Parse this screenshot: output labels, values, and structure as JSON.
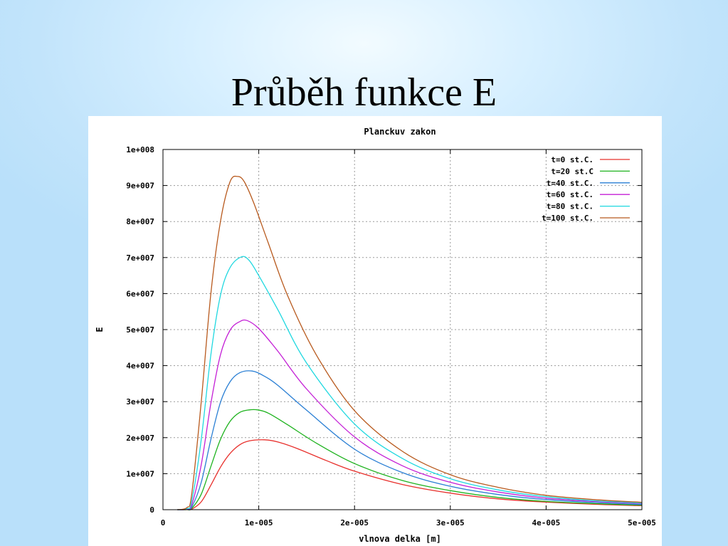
{
  "slide": {
    "title": "Průběh funkce E"
  },
  "chart_data": {
    "type": "line",
    "title": "Planckuv zakon",
    "xlabel": "vlnova delka [m]",
    "ylabel": "E",
    "xlim": [
      0,
      5e-05
    ],
    "ylim": [
      0,
      100000000.0
    ],
    "grid": true,
    "legend_position": "top-right",
    "x_ticks": [
      {
        "value": 0,
        "label": "0"
      },
      {
        "value": 1e-05,
        "label": "1e-005"
      },
      {
        "value": 2e-05,
        "label": "2e-005"
      },
      {
        "value": 3e-05,
        "label": "3e-005"
      },
      {
        "value": 4e-05,
        "label": "4e-005"
      },
      {
        "value": 5e-05,
        "label": "5e-005"
      }
    ],
    "y_ticks": [
      {
        "value": 0,
        "label": "0"
      },
      {
        "value": 10000000.0,
        "label": "1e+007"
      },
      {
        "value": 20000000.0,
        "label": "2e+007"
      },
      {
        "value": 30000000.0,
        "label": "3e+007"
      },
      {
        "value": 40000000.0,
        "label": "4e+007"
      },
      {
        "value": 50000000.0,
        "label": "5e+007"
      },
      {
        "value": 60000000.0,
        "label": "6e+007"
      },
      {
        "value": 70000000.0,
        "label": "7e+007"
      },
      {
        "value": 80000000.0,
        "label": "8e+007"
      },
      {
        "value": 90000000.0,
        "label": "9e+007"
      },
      {
        "value": 100000000.0,
        "label": "1e+008"
      }
    ],
    "series": [
      {
        "name": "t=0 st.C.",
        "color": "#e8302c",
        "x": [
          1.5e-06,
          2.5e-06,
          3e-06,
          4e-06,
          5e-06,
          6e-06,
          7e-06,
          8e-06,
          9e-06,
          1.06e-05,
          1.2e-05,
          1.4e-05,
          1.7e-05,
          2e-05,
          2.5e-05,
          3e-05,
          3.5e-05,
          4e-05,
          4.5e-05,
          5e-05
        ],
        "y": [
          0,
          10000.0,
          140000.0,
          2200000.0,
          6800000.0,
          11800000.0,
          15600000.0,
          18000000.0,
          19100000.0,
          19400000.0,
          18800000.0,
          17000000.0,
          13700000.0,
          10700000.0,
          7000000.0,
          4600000.0,
          3000000.0,
          2100000.0,
          1500000.0,
          1100000.0
        ]
      },
      {
        "name": "t=20 st.C",
        "color": "#1fb31f",
        "x": [
          1.5e-06,
          2.5e-06,
          3e-06,
          4e-06,
          5e-06,
          6e-06,
          7e-06,
          8e-06,
          9e-06,
          9.9e-06,
          1.1e-05,
          1.3e-05,
          1.6e-05,
          2e-05,
          2.5e-05,
          3e-05,
          3.5e-05,
          4e-05,
          4.5e-05,
          5e-05
        ],
        "y": [
          0,
          30000.0,
          350000.0,
          4300000.0,
          12000000.0,
          19500000.0,
          24500000.0,
          27000000.0,
          27700000.0,
          27700000.0,
          26800000.0,
          23600000.0,
          18500000.0,
          12800000.0,
          8100000.0,
          5300000.0,
          3400000.0,
          2300000.0,
          1700000.0,
          1250000.0
        ]
      },
      {
        "name": "t=40 st.C.",
        "color": "#2a7fd4",
        "x": [
          1.5e-06,
          2.5e-06,
          3e-06,
          4e-06,
          5e-06,
          6e-06,
          7e-06,
          8e-06,
          9.3e-06,
          1.05e-05,
          1.2e-05,
          1.5e-05,
          2e-05,
          2.5e-05,
          3e-05,
          3.5e-05,
          4e-05,
          4.5e-05,
          5e-05
        ],
        "y": [
          0,
          70000.0,
          700000.0,
          7600000.0,
          19500000.0,
          29800000.0,
          35500000.0,
          38000000.0,
          38500000.0,
          37200000.0,
          34500000.0,
          27600000.0,
          16800000.0,
          10300000.0,
          6500000.0,
          4200000.0,
          2800000.0,
          2000000.0,
          1450000.0
        ]
      },
      {
        "name": "t=60 st.C.",
        "color": "#c41fd6",
        "x": [
          1.5e-06,
          2.5e-06,
          3e-06,
          4e-06,
          5e-06,
          6e-06,
          7e-06,
          8e-06,
          8.8e-06,
          1e-05,
          1.2e-05,
          1.5e-05,
          2e-05,
          2.5e-05,
          3e-05,
          3.5e-05,
          4e-05,
          4.5e-05,
          5e-05
        ],
        "y": [
          0,
          150000.0,
          1300000.0,
          12500000.0,
          29500000.0,
          43000000.0,
          49800000.0,
          52200000.0,
          52500000.0,
          50300000.0,
          44000000.0,
          33500000.0,
          20200000.0,
          12200000.0,
          7600000.0,
          4900000.0,
          3200000.0,
          2300000.0,
          1700000.0
        ]
      },
      {
        "name": "t=80 st.C.",
        "color": "#1fd8e0",
        "x": [
          1.5e-06,
          2.5e-06,
          3e-06,
          4e-06,
          5e-06,
          6e-06,
          7e-06,
          8.2e-06,
          9e-06,
          1e-05,
          1.2e-05,
          1.5e-05,
          2e-05,
          2.5e-05,
          3e-05,
          3.5e-05,
          4e-05,
          4.5e-05,
          5e-05
        ],
        "y": [
          0,
          300000.0,
          2400000.0,
          19500000.0,
          43000000.0,
          59500000.0,
          67200000.0,
          70200000.0,
          69200000.0,
          65000000.0,
          55500000.0,
          40700000.0,
          23800000.0,
          14200000.0,
          8600000.0,
          5500000.0,
          3600000.0,
          2500000.0,
          1850000.0
        ]
      },
      {
        "name": "t=100 st.C.",
        "color": "#b85a1e",
        "x": [
          1.5e-06,
          2.5e-06,
          3e-06,
          4e-06,
          5e-06,
          6e-06,
          7e-06,
          7.8e-06,
          8.5e-06,
          9.5e-06,
          1.1e-05,
          1.3e-05,
          1.6e-05,
          2e-05,
          2.5e-05,
          3e-05,
          3.5e-05,
          4e-05,
          4.5e-05,
          5e-05
        ],
        "y": [
          0,
          600000.0,
          4300000.0,
          30000000.0,
          60000000.0,
          80000000.0,
          91000000.0,
          92500000.0,
          91000000.0,
          85000000.0,
          74000000.0,
          59500000.0,
          43000000.0,
          27500000.0,
          16200000.0,
          9700000.0,
          6200000.0,
          4000000.0,
          2800000.0,
          2050000.0
        ]
      }
    ]
  }
}
